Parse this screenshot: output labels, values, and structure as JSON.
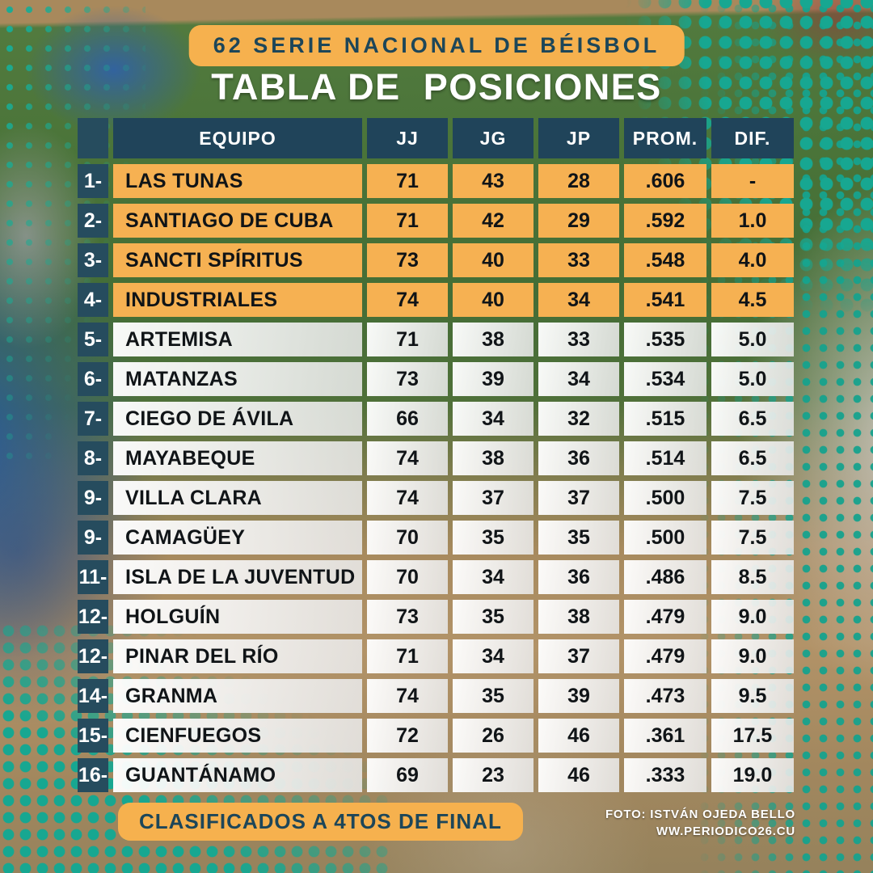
{
  "header": {
    "series_badge": "62 SERIE NACIONAL DE BÉISBOL",
    "title": "TABLA DE  POSICIONES"
  },
  "chart_data": {
    "type": "table",
    "title": "TABLA DE POSICIONES",
    "subtitle": "62 SERIE NACIONAL DE BÉISBOL",
    "columns": [
      "EQUIPO",
      "JJ",
      "JG",
      "JP",
      "PROM.",
      "DIF."
    ],
    "rows": [
      {
        "pos": "1-",
        "team": "LAS TUNAS",
        "jj": "71",
        "jg": "43",
        "jp": "28",
        "prom": ".606",
        "dif": "-",
        "qualified": true
      },
      {
        "pos": "2-",
        "team": "SANTIAGO DE CUBA",
        "jj": "71",
        "jg": "42",
        "jp": "29",
        "prom": ".592",
        "dif": "1.0",
        "qualified": true
      },
      {
        "pos": "3-",
        "team": "SANCTI SPÍRITUS",
        "jj": "73",
        "jg": "40",
        "jp": "33",
        "prom": ".548",
        "dif": "4.0",
        "qualified": true
      },
      {
        "pos": "4-",
        "team": "INDUSTRIALES",
        "jj": "74",
        "jg": "40",
        "jp": "34",
        "prom": ".541",
        "dif": "4.5",
        "qualified": true
      },
      {
        "pos": "5-",
        "team": "ARTEMISA",
        "jj": "71",
        "jg": "38",
        "jp": "33",
        "prom": ".535",
        "dif": "5.0",
        "qualified": false
      },
      {
        "pos": "6-",
        "team": "MATANZAS",
        "jj": "73",
        "jg": "39",
        "jp": "34",
        "prom": ".534",
        "dif": "5.0",
        "qualified": false
      },
      {
        "pos": "7-",
        "team": "CIEGO DE ÁVILA",
        "jj": "66",
        "jg": "34",
        "jp": "32",
        "prom": ".515",
        "dif": "6.5",
        "qualified": false
      },
      {
        "pos": "8-",
        "team": "MAYABEQUE",
        "jj": "74",
        "jg": "38",
        "jp": "36",
        "prom": ".514",
        "dif": "6.5",
        "qualified": false
      },
      {
        "pos": "9-",
        "team": "VILLA CLARA",
        "jj": "74",
        "jg": "37",
        "jp": "37",
        "prom": ".500",
        "dif": "7.5",
        "qualified": false
      },
      {
        "pos": "9-",
        "team": "CAMAGÜEY",
        "jj": "70",
        "jg": "35",
        "jp": "35",
        "prom": ".500",
        "dif": "7.5",
        "qualified": false
      },
      {
        "pos": "11-",
        "team": "ISLA DE  LA JUVENTUD",
        "jj": "70",
        "jg": "34",
        "jp": "36",
        "prom": ".486",
        "dif": "8.5",
        "qualified": false
      },
      {
        "pos": "12-",
        "team": "HOLGUÍN",
        "jj": "73",
        "jg": "35",
        "jp": "38",
        "prom": ".479",
        "dif": "9.0",
        "qualified": false
      },
      {
        "pos": "12-",
        "team": "PINAR DEL RÍO",
        "jj": "71",
        "jg": "34",
        "jp": "37",
        "prom": ".479",
        "dif": "9.0",
        "qualified": false
      },
      {
        "pos": "14-",
        "team": "GRANMA",
        "jj": "74",
        "jg": "35",
        "jp": "39",
        "prom": ".473",
        "dif": "9.5",
        "qualified": false
      },
      {
        "pos": "15-",
        "team": "CIENFUEGOS",
        "jj": "72",
        "jg": "26",
        "jp": "46",
        "prom": ".361",
        "dif": "17.5",
        "qualified": false
      },
      {
        "pos": "16-",
        "team": "GUANTÁNAMO",
        "jj": "69",
        "jg": "23",
        "jp": "46",
        "prom": ".333",
        "dif": "19.0",
        "qualified": false
      }
    ]
  },
  "footer": {
    "qualified_badge": "CLASIFICADOS A 4TOS DE FINAL",
    "photo_credit_line1": "FOTO: ISTVÁN OJEDA BELLO",
    "photo_credit_line2": "WW.PERIODICO26.CU"
  },
  "colors": {
    "accent_orange": "#F6B152",
    "dark_teal": "#20445A",
    "position_teal": "#264C5E",
    "halftone_teal": "#16A28D",
    "text_dark": "#101417",
    "text_light": "#FFFFFF"
  }
}
